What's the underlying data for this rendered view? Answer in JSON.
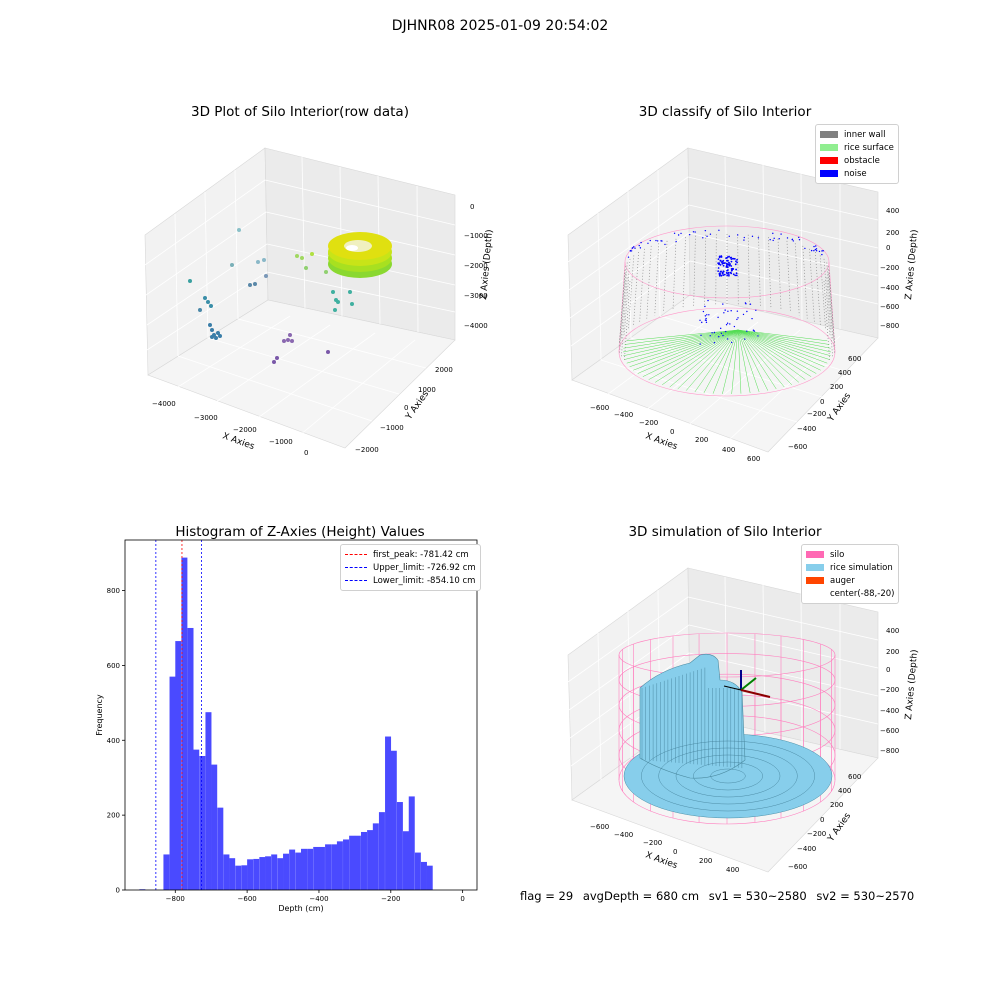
{
  "figure": {
    "suptitle": "DJHNR08 2025-01-09 20:54:02"
  },
  "panels": {
    "raw": {
      "title": "3D Plot of Silo Interior(row data)",
      "xlabel": "X Axies",
      "ylabel": "Y Axies",
      "zlabel": "Z Axies (Depth)",
      "xticks": [
        "−4000",
        "−3000",
        "−2000",
        "−1000",
        "0"
      ],
      "yticks": [
        "−2000",
        "−1000",
        "0",
        "1000",
        "2000"
      ],
      "zticks": [
        "0",
        "−1000",
        "−2000",
        "−3000",
        "−4000"
      ]
    },
    "classify": {
      "title": "3D classify of Silo Interior",
      "xlabel": "X Axies",
      "ylabel": "Y Axies",
      "zlabel": "Z Axies (Depth)",
      "xticks": [
        "−600",
        "−400",
        "−200",
        "0",
        "200",
        "400",
        "600"
      ],
      "yticks": [
        "−600",
        "−400",
        "−200",
        "0",
        "200",
        "400",
        "600"
      ],
      "zticks": [
        "400",
        "200",
        "0",
        "−200",
        "−400",
        "−600",
        "−800"
      ],
      "legend": [
        {
          "label": "inner wall",
          "color": "#808080"
        },
        {
          "label": "rice surface",
          "color": "#90ee90"
        },
        {
          "label": "obstacle",
          "color": "#ff0000"
        },
        {
          "label": "noise",
          "color": "#0000ff"
        }
      ]
    },
    "simulation": {
      "title": "3D simulation of Silo Interior",
      "xlabel": "X Axies",
      "ylabel": "Y Axies",
      "zlabel": "Z Axies (Depth)",
      "xticks": [
        "−600",
        "−400",
        "−200",
        "0",
        "200",
        "400"
      ],
      "yticks": [
        "−600",
        "−400",
        "−200",
        "0",
        "200",
        "400",
        "600"
      ],
      "zticks": [
        "400",
        "200",
        "0",
        "−200",
        "−400",
        "−600",
        "−800"
      ],
      "legend": [
        {
          "label": "silo",
          "color": "#ff69b4"
        },
        {
          "label": "rice simulation",
          "color": "#87ceeb"
        },
        {
          "label": "auger",
          "color": "#ff4500"
        },
        {
          "label": "center(-88,-20)",
          "color": ""
        }
      ]
    }
  },
  "chart_data": [
    {
      "type": "bar",
      "title": "Histogram of Z-Axies (Height) Values",
      "xlabel": "Depth (cm)",
      "ylabel": "Frequency",
      "xlim": [
        -940,
        40
      ],
      "ylim": [
        0,
        935
      ],
      "color": "#4a4aff",
      "xticks": [
        "−800",
        "−600",
        "−400",
        "−200",
        "0"
      ],
      "xtick_values": [
        -800,
        -600,
        -400,
        -200,
        0
      ],
      "yticks": [
        "0",
        "200",
        "400",
        "600",
        "800"
      ],
      "ytick_values": [
        0,
        200,
        400,
        600,
        800
      ],
      "bin_width": 16.7,
      "bins": [
        {
          "x0": -900,
          "v": 2
        },
        {
          "x0": -833,
          "v": 95
        },
        {
          "x0": -816,
          "v": 570
        },
        {
          "x0": -800,
          "v": 665
        },
        {
          "x0": -783,
          "v": 888
        },
        {
          "x0": -766,
          "v": 700
        },
        {
          "x0": -750,
          "v": 375
        },
        {
          "x0": -733,
          "v": 358
        },
        {
          "x0": -716,
          "v": 475
        },
        {
          "x0": -700,
          "v": 335
        },
        {
          "x0": -683,
          "v": 220
        },
        {
          "x0": -666,
          "v": 95
        },
        {
          "x0": -650,
          "v": 85
        },
        {
          "x0": -633,
          "v": 65
        },
        {
          "x0": -616,
          "v": 66
        },
        {
          "x0": -600,
          "v": 82
        },
        {
          "x0": -583,
          "v": 83
        },
        {
          "x0": -566,
          "v": 88
        },
        {
          "x0": -550,
          "v": 90
        },
        {
          "x0": -533,
          "v": 95
        },
        {
          "x0": -516,
          "v": 85
        },
        {
          "x0": -500,
          "v": 97
        },
        {
          "x0": -483,
          "v": 108
        },
        {
          "x0": -466,
          "v": 100
        },
        {
          "x0": -450,
          "v": 110
        },
        {
          "x0": -433,
          "v": 110
        },
        {
          "x0": -416,
          "v": 115
        },
        {
          "x0": -400,
          "v": 115
        },
        {
          "x0": -383,
          "v": 122
        },
        {
          "x0": -366,
          "v": 122
        },
        {
          "x0": -350,
          "v": 130
        },
        {
          "x0": -333,
          "v": 135
        },
        {
          "x0": -316,
          "v": 145
        },
        {
          "x0": -300,
          "v": 145
        },
        {
          "x0": -283,
          "v": 155
        },
        {
          "x0": -266,
          "v": 160
        },
        {
          "x0": -250,
          "v": 178
        },
        {
          "x0": -233,
          "v": 208
        },
        {
          "x0": -216,
          "v": 410
        },
        {
          "x0": -200,
          "v": 372
        },
        {
          "x0": -183,
          "v": 235
        },
        {
          "x0": -166,
          "v": 157
        },
        {
          "x0": -150,
          "v": 250
        },
        {
          "x0": -133,
          "v": 100
        },
        {
          "x0": -116,
          "v": 75
        },
        {
          "x0": -100,
          "v": 65
        }
      ],
      "lines": [
        {
          "label": "first_peak: -781.42 cm",
          "x": -781.42,
          "color": "#ff0000"
        },
        {
          "label": "Upper_limit: -726.92 cm",
          "x": -726.92,
          "color": "#0000ff"
        },
        {
          "label": "Lower_limit: -854.10 cm",
          "x": -854.1,
          "color": "#0000ff"
        }
      ],
      "legend_position": "upper right"
    }
  ],
  "status": {
    "flag": "flag = 29",
    "avg_depth": "avgDepth = 680 cm",
    "sv1": "sv1 = 530~2580",
    "sv2": "sv2 = 530~2570"
  }
}
